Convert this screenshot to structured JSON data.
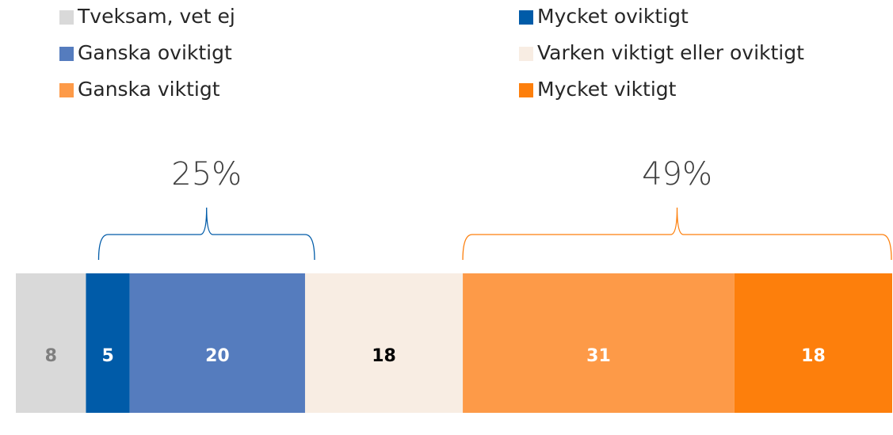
{
  "chart_data": {
    "type": "stacked-bar-horizontal",
    "categories": [
      null
    ],
    "xlim": [
      0,
      100
    ],
    "series": [
      {
        "name": "Tveksam, vet ej",
        "color": "#d9d9d9",
        "label_color": "#7f7f7f",
        "values": [
          8
        ]
      },
      {
        "name": "Mycket oviktigt",
        "color": "#005ba8",
        "label_color": "#ffffff",
        "values": [
          5
        ]
      },
      {
        "name": "Ganska oviktigt",
        "color": "#557cbe",
        "label_color": "#ffffff",
        "values": [
          20
        ]
      },
      {
        "name": "Varken viktigt eller oviktigt",
        "color": "#f8ede3",
        "label_color": "#000000",
        "values": [
          18
        ]
      },
      {
        "name": "Ganska viktigt",
        "color": "#fd9a48",
        "label_color": "#ffffff",
        "values": [
          31
        ]
      },
      {
        "name": "Mycket viktigt",
        "color": "#fd7f0c",
        "label_color": "#ffffff",
        "values": [
          18
        ]
      }
    ],
    "annotations": [
      {
        "text": "25%",
        "color": "#005ba8"
      },
      {
        "text": "49%",
        "color": "#fd7f0c"
      }
    ]
  }
}
